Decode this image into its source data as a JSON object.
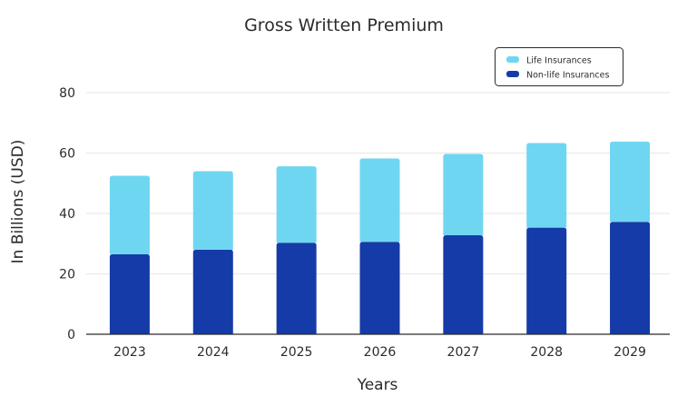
{
  "chart_data": {
    "type": "bar",
    "stacked": true,
    "title": "Gross Written Premium",
    "xlabel": "Years",
    "ylabel": "In Billions (USD)",
    "categories": [
      "2023",
      "2024",
      "2025",
      "2026",
      "2027",
      "2028",
      "2029"
    ],
    "series": [
      {
        "name": "Non-life Insurances",
        "color": "#143ba8",
        "values": [
          26.5,
          28,
          30.3,
          30.6,
          32.8,
          35.3,
          37.2
        ]
      },
      {
        "name": "Life Insurances",
        "color": "#6fd6f1",
        "values": [
          26,
          26,
          25.3,
          27.6,
          26.9,
          28,
          26.6
        ]
      }
    ],
    "ylim": [
      0,
      80
    ],
    "yticks": [
      "0",
      "20",
      "40",
      "60",
      "80"
    ],
    "grid": true,
    "legend_position": "top-right"
  }
}
